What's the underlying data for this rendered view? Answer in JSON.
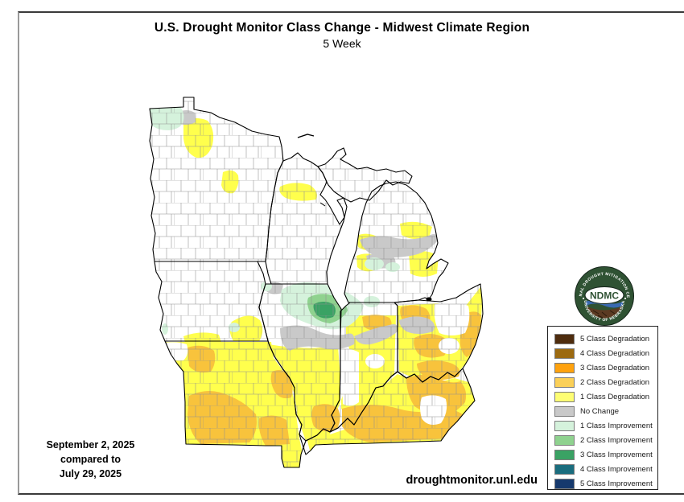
{
  "header": {
    "title": "U.S. Drought Monitor Class Change - Midwest Climate Region",
    "subtitle": "5 Week"
  },
  "date_caption": {
    "line1": "September 2, 2025",
    "line2": "compared to",
    "line3": "July 29, 2025"
  },
  "site": "droughtmonitor.unl.edu",
  "logo": {
    "acronym": "NDMC",
    "ring_text_top": "NATIONAL DROUGHT MITIGATION CENTER",
    "ring_text_bottom": "UNIVERSITY OF NEBRASKA",
    "ring_color": "#2f5233",
    "wave_color": "#3a6ab1",
    "earth_color": "#5b3a22"
  },
  "legend": {
    "items": [
      {
        "key": "deg5",
        "label": "5 Class Degradation"
      },
      {
        "key": "deg4",
        "label": "4 Class Degradation"
      },
      {
        "key": "deg3",
        "label": "3 Class Degradation"
      },
      {
        "key": "deg2",
        "label": "2 Class Degradation"
      },
      {
        "key": "deg1",
        "label": "1 Class Degradation"
      },
      {
        "key": "nochange",
        "label": "No Change"
      },
      {
        "key": "imp1",
        "label": "1 Class Improvement"
      },
      {
        "key": "imp2",
        "label": "2 Class Improvement"
      },
      {
        "key": "imp3",
        "label": "3 Class Improvement"
      },
      {
        "key": "imp4",
        "label": "4 Class Improvement"
      },
      {
        "key": "imp5",
        "label": "5 Class Improvement"
      }
    ]
  },
  "palette": {
    "deg5": "#4e2c0e",
    "deg4": "#9c6a10",
    "deg3": "#ffa20e",
    "deg2": "#fbd058",
    "deg1": "#fefe73",
    "nochange": "#c9c9c9",
    "imp1": "#d5f2dc",
    "imp2": "#8fd28f",
    "imp3": "#3aa264",
    "imp4": "#1a6d7e",
    "imp5": "#16396d",
    "deg1m": "#ffff4d",
    "deg2m": "#f8c33c"
  }
}
